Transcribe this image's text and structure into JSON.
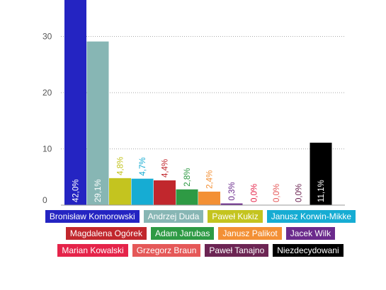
{
  "chart_data": {
    "type": "bar",
    "ylim": [
      0,
      36
    ],
    "yticks": [
      0,
      10,
      20,
      30
    ],
    "grid": true,
    "legend_placement": "bottom",
    "series": [
      {
        "name": "Bronisław Komorowski",
        "value": 42.0,
        "label": "42,0%",
        "color": "#2424c2"
      },
      {
        "name": "Andrzej Duda",
        "value": 29.1,
        "label": "29,1%",
        "color": "#87b6b4"
      },
      {
        "name": "Paweł Kukiz",
        "value": 4.8,
        "label": "4,8%",
        "color": "#c4c41f"
      },
      {
        "name": "Janusz Korwin-Mikke",
        "value": 4.7,
        "label": "4,7%",
        "color": "#16acd3"
      },
      {
        "name": "Magdalena Ogórek",
        "value": 4.4,
        "label": "4,4%",
        "color": "#c1272d"
      },
      {
        "name": "Adam Jarubas",
        "value": 2.8,
        "label": "2,8%",
        "color": "#2e9a44"
      },
      {
        "name": "Janusz Palikot",
        "value": 2.4,
        "label": "2,4%",
        "color": "#f39035"
      },
      {
        "name": "Jacek Wilk",
        "value": 0.3,
        "label": "0,3%",
        "color": "#6b2a8c"
      },
      {
        "name": "Marian Kowalski",
        "value": 0.0,
        "label": "0,0%",
        "color": "#e5244a"
      },
      {
        "name": "Grzegorz Braun",
        "value": 0.0,
        "label": "0,0%",
        "color": "#e55858"
      },
      {
        "name": "Paweł Tanajno",
        "value": 0.0,
        "label": "0,0%",
        "color": "#6c2553"
      },
      {
        "name": "Niezdecydowani",
        "value": 11.1,
        "label": "11,1%",
        "color": "#000000"
      }
    ]
  }
}
